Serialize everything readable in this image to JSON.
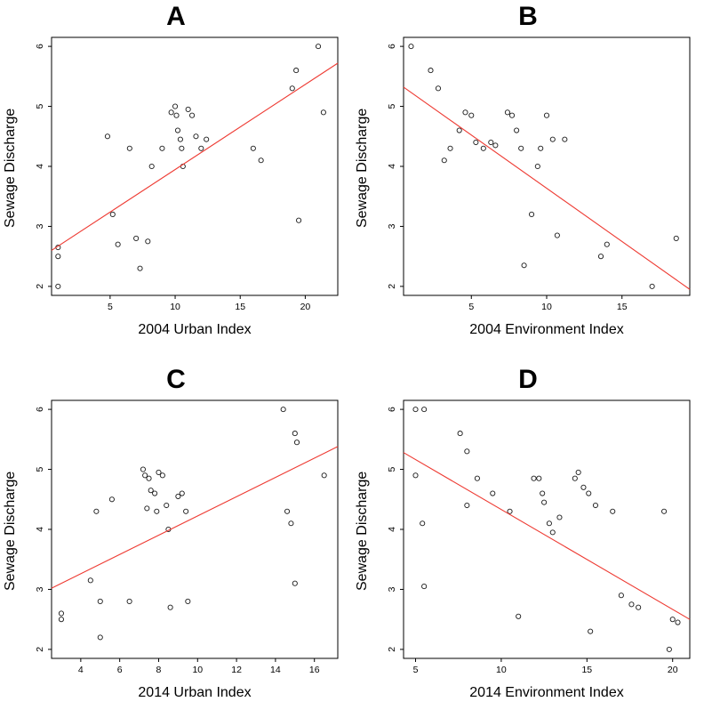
{
  "figure": {
    "background": "#ffffff",
    "point_color": "#1a1a1a",
    "line_color": "#ee3b33"
  },
  "chart_data": [
    {
      "type": "scatter",
      "title": "A",
      "xlabel": "2004 Urban Index",
      "ylabel": "Sewage Discharge",
      "xlim": [
        0.5,
        22.5
      ],
      "ylim": [
        1.85,
        6.15
      ],
      "xticks": [
        5,
        10,
        15,
        20
      ],
      "yticks": [
        2,
        3,
        4,
        5,
        6
      ],
      "grid": false,
      "marker": "open-circle",
      "points": [
        [
          1,
          2.65
        ],
        [
          1,
          2.5
        ],
        [
          1,
          2.0
        ],
        [
          4.8,
          4.5
        ],
        [
          5.2,
          3.2
        ],
        [
          5.6,
          2.7
        ],
        [
          6.5,
          4.3
        ],
        [
          7,
          2.8
        ],
        [
          7.3,
          2.3
        ],
        [
          7.9,
          2.75
        ],
        [
          8.2,
          4.0
        ],
        [
          9,
          4.3
        ],
        [
          9.7,
          4.9
        ],
        [
          10,
          5.0
        ],
        [
          10.1,
          4.85
        ],
        [
          10.2,
          4.6
        ],
        [
          10.4,
          4.45
        ],
        [
          10.5,
          4.3
        ],
        [
          10.6,
          4.0
        ],
        [
          11,
          4.95
        ],
        [
          11.3,
          4.85
        ],
        [
          11.6,
          4.5
        ],
        [
          12,
          4.3
        ],
        [
          12.4,
          4.45
        ],
        [
          16,
          4.3
        ],
        [
          16.6,
          4.1
        ],
        [
          19,
          5.3
        ],
        [
          19.3,
          5.6
        ],
        [
          19.5,
          3.1
        ],
        [
          21,
          6.0
        ],
        [
          21.4,
          4.9
        ]
      ],
      "fit_line": {
        "x": [
          0.5,
          22.5
        ],
        "y": [
          2.6,
          5.72
        ]
      }
    },
    {
      "type": "scatter",
      "title": "B",
      "xlabel": "2004 Environment Index",
      "ylabel": "Sewage Discharge",
      "xlim": [
        0.5,
        19.5
      ],
      "ylim": [
        1.85,
        6.15
      ],
      "xticks": [
        5,
        10,
        15
      ],
      "yticks": [
        2,
        3,
        4,
        5,
        6
      ],
      "grid": false,
      "marker": "open-circle",
      "points": [
        [
          1,
          6.0
        ],
        [
          2.3,
          5.6
        ],
        [
          2.8,
          5.3
        ],
        [
          3.2,
          4.1
        ],
        [
          3.6,
          4.3
        ],
        [
          4.2,
          4.6
        ],
        [
          4.6,
          4.9
        ],
        [
          5,
          4.85
        ],
        [
          5.3,
          4.4
        ],
        [
          5.8,
          4.3
        ],
        [
          6.3,
          4.4
        ],
        [
          6.6,
          4.35
        ],
        [
          7.4,
          4.9
        ],
        [
          7.7,
          4.85
        ],
        [
          8,
          4.6
        ],
        [
          8.3,
          4.3
        ],
        [
          8.5,
          2.35
        ],
        [
          9,
          3.2
        ],
        [
          9.4,
          4.0
        ],
        [
          9.6,
          4.3
        ],
        [
          10,
          4.85
        ],
        [
          10.4,
          4.45
        ],
        [
          10.7,
          2.85
        ],
        [
          11.2,
          4.45
        ],
        [
          13.6,
          2.5
        ],
        [
          14,
          2.7
        ],
        [
          17,
          2.0
        ],
        [
          18.6,
          2.8
        ]
      ],
      "fit_line": {
        "x": [
          0.5,
          19.5
        ],
        "y": [
          5.32,
          1.95
        ]
      }
    },
    {
      "type": "scatter",
      "title": "C",
      "xlabel": "2014 Urban Index",
      "ylabel": "Sewage Discharge",
      "xlim": [
        2.5,
        17.2
      ],
      "ylim": [
        1.85,
        6.15
      ],
      "xticks": [
        4,
        6,
        8,
        10,
        12,
        14,
        16
      ],
      "yticks": [
        2,
        3,
        4,
        5,
        6
      ],
      "grid": false,
      "marker": "open-circle",
      "points": [
        [
          3,
          2.6
        ],
        [
          3,
          2.5
        ],
        [
          4.5,
          3.15
        ],
        [
          4.8,
          4.3
        ],
        [
          5,
          2.8
        ],
        [
          5,
          2.2
        ],
        [
          5.6,
          4.5
        ],
        [
          6.5,
          2.8
        ],
        [
          7.2,
          5.0
        ],
        [
          7.3,
          4.9
        ],
        [
          7.4,
          4.35
        ],
        [
          7.5,
          4.85
        ],
        [
          7.6,
          4.65
        ],
        [
          7.8,
          4.6
        ],
        [
          7.9,
          4.3
        ],
        [
          8,
          4.95
        ],
        [
          8.2,
          4.9
        ],
        [
          8.4,
          4.4
        ],
        [
          8.5,
          4.0
        ],
        [
          8.6,
          2.7
        ],
        [
          9,
          4.55
        ],
        [
          9.2,
          4.6
        ],
        [
          9.4,
          4.3
        ],
        [
          9.5,
          2.8
        ],
        [
          14.4,
          6.0
        ],
        [
          14.6,
          4.3
        ],
        [
          14.8,
          4.1
        ],
        [
          15,
          5.6
        ],
        [
          15.1,
          5.45
        ],
        [
          15,
          3.1
        ],
        [
          16.5,
          4.9
        ]
      ],
      "fit_line": {
        "x": [
          2.5,
          17.2
        ],
        "y": [
          3.02,
          5.38
        ]
      }
    },
    {
      "type": "scatter",
      "title": "D",
      "xlabel": "2014 Environment Index",
      "ylabel": "Sewage Discharge",
      "xlim": [
        4.3,
        21
      ],
      "ylim": [
        1.85,
        6.15
      ],
      "xticks": [
        5,
        10,
        15,
        20
      ],
      "yticks": [
        2,
        3,
        4,
        5,
        6
      ],
      "grid": false,
      "marker": "open-circle",
      "points": [
        [
          5,
          6.0
        ],
        [
          5.5,
          6.0
        ],
        [
          5,
          4.9
        ],
        [
          5.4,
          4.1
        ],
        [
          5.5,
          3.05
        ],
        [
          7.6,
          5.6
        ],
        [
          8,
          5.3
        ],
        [
          8,
          4.4
        ],
        [
          8.6,
          4.85
        ],
        [
          9.5,
          4.6
        ],
        [
          10.5,
          4.3
        ],
        [
          11,
          2.55
        ],
        [
          11.9,
          4.85
        ],
        [
          12.2,
          4.85
        ],
        [
          12.4,
          4.6
        ],
        [
          12.5,
          4.45
        ],
        [
          12.8,
          4.1
        ],
        [
          13,
          3.95
        ],
        [
          13.4,
          4.2
        ],
        [
          14.3,
          4.85
        ],
        [
          14.5,
          4.95
        ],
        [
          14.8,
          4.7
        ],
        [
          15.1,
          4.6
        ],
        [
          15.2,
          2.3
        ],
        [
          15.5,
          4.4
        ],
        [
          16.5,
          4.3
        ],
        [
          17,
          2.9
        ],
        [
          17.6,
          2.75
        ],
        [
          18,
          2.7
        ],
        [
          19.5,
          4.3
        ],
        [
          19.8,
          2.0
        ],
        [
          20,
          2.5
        ],
        [
          20.3,
          2.45
        ]
      ],
      "fit_line": {
        "x": [
          4.3,
          21
        ],
        "y": [
          5.28,
          2.5
        ]
      }
    }
  ]
}
